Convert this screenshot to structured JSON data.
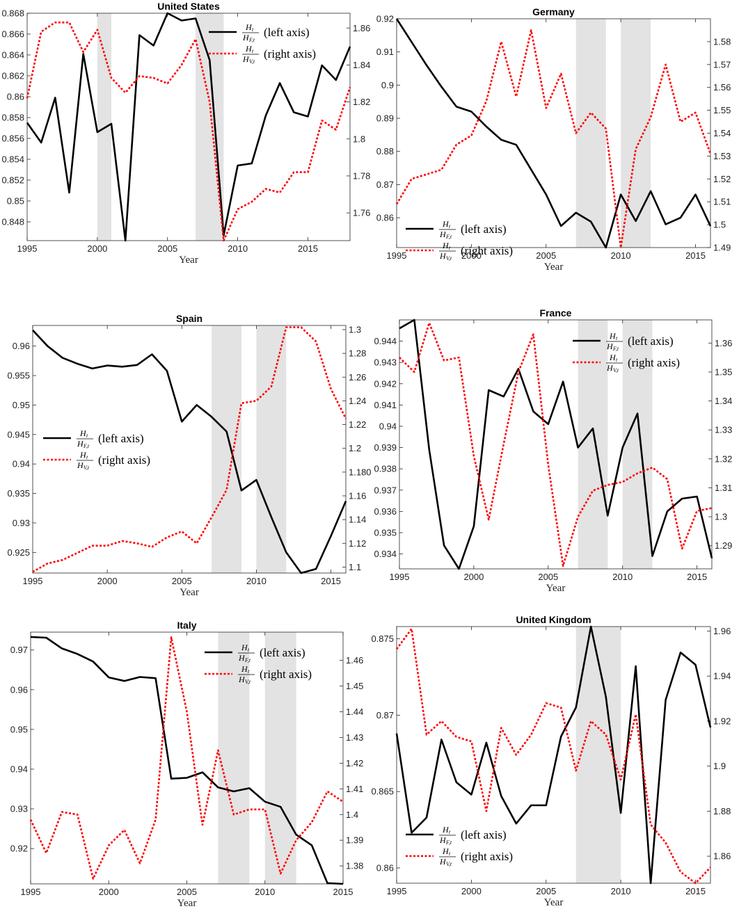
{
  "chart_data": [
    {
      "type": "line",
      "title": "United States",
      "xlabel": "Year",
      "xlim": [
        1995,
        2018
      ],
      "xticks": [
        1995,
        2000,
        2005,
        2010,
        2015
      ],
      "ylim_left": [
        0.8462,
        0.868
      ],
      "yticks_left": [
        0.848,
        0.85,
        0.852,
        0.854,
        0.856,
        0.858,
        0.86,
        0.862,
        0.864,
        0.866,
        0.868
      ],
      "ylim_right": [
        1.745,
        1.868
      ],
      "yticks_right": [
        1.76,
        1.78,
        1.8,
        1.82,
        1.84,
        1.86
      ],
      "shaded": [
        [
          2000,
          2001
        ],
        [
          2007,
          2009
        ]
      ],
      "legend_position": "top-right",
      "x": [
        1995,
        1996,
        1997,
        1998,
        1999,
        2000,
        2001,
        2002,
        2003,
        2004,
        2005,
        2006,
        2007,
        2008,
        2009,
        2010,
        2011,
        2012,
        2013,
        2014,
        2015,
        2016,
        2017,
        2018
      ],
      "series": [
        {
          "name": "left axis",
          "axis": "left",
          "color": "#000000",
          "dash": "solid",
          "values": [
            0.8575,
            0.8556,
            0.8599,
            0.8508,
            0.8641,
            0.8566,
            0.8574,
            0.8462,
            0.8659,
            0.8649,
            0.868,
            0.8673,
            0.8675,
            0.8635,
            0.8467,
            0.8534,
            0.8536,
            0.8582,
            0.8613,
            0.8585,
            0.8581,
            0.863,
            0.8616,
            0.8648
          ]
        },
        {
          "name": "right axis",
          "axis": "right",
          "color": "#ff0000",
          "dash": "dotted",
          "values": [
            1.822,
            1.858,
            1.863,
            1.863,
            1.847,
            1.859,
            1.833,
            1.825,
            1.834,
            1.833,
            1.83,
            1.84,
            1.854,
            1.82,
            1.745,
            1.762,
            1.766,
            1.773,
            1.771,
            1.782,
            1.782,
            1.81,
            1.805,
            1.828
          ]
        }
      ]
    },
    {
      "type": "line",
      "title": "Germany",
      "xlabel": "Year",
      "xlim": [
        1995,
        2016
      ],
      "xticks": [
        1995,
        2000,
        2005,
        2010,
        2015
      ],
      "ylim_left": [
        0.851,
        0.92
      ],
      "yticks_left": [
        0.86,
        0.87,
        0.88,
        0.89,
        0.9,
        0.91,
        0.92
      ],
      "ylim_right": [
        1.49,
        1.59
      ],
      "yticks_right": [
        1.49,
        1.5,
        1.51,
        1.52,
        1.53,
        1.54,
        1.55,
        1.56,
        1.57,
        1.58
      ],
      "shaded": [
        [
          2007,
          2009
        ],
        [
          2010,
          2012
        ]
      ],
      "legend_position": "bottom-left",
      "x": [
        1995,
        1996,
        1997,
        1998,
        1999,
        2000,
        2001,
        2002,
        2003,
        2004,
        2005,
        2006,
        2007,
        2008,
        2009,
        2010,
        2011,
        2012,
        2013,
        2014,
        2015,
        2016
      ],
      "series": [
        {
          "name": "left axis",
          "axis": "left",
          "color": "#000000",
          "dash": "solid",
          "values": [
            0.92,
            0.913,
            0.906,
            0.8995,
            0.8935,
            0.892,
            0.8875,
            0.8835,
            0.882,
            0.8745,
            0.867,
            0.8575,
            0.8615,
            0.8588,
            0.851,
            0.867,
            0.859,
            0.868,
            0.858,
            0.86,
            0.867,
            0.8575
          ]
        },
        {
          "name": "right axis",
          "axis": "right",
          "color": "#ff0000",
          "dash": "dotted",
          "values": [
            1.509,
            1.52,
            1.522,
            1.524,
            1.535,
            1.539,
            1.554,
            1.58,
            1.556,
            1.585,
            1.551,
            1.566,
            1.54,
            1.549,
            1.542,
            1.49,
            1.533,
            1.547,
            1.57,
            1.545,
            1.549,
            1.531
          ]
        }
      ]
    },
    {
      "type": "line",
      "title": "Spain",
      "xlabel": "Year",
      "xlim": [
        1995,
        2016
      ],
      "xticks": [
        1995,
        2000,
        2005,
        2010,
        2015
      ],
      "ylim_left": [
        0.9215,
        0.9635
      ],
      "yticks_left": [
        0.925,
        0.93,
        0.935,
        0.94,
        0.945,
        0.95,
        0.955,
        0.96
      ],
      "ylim_right": [
        1.095,
        1.3035
      ],
      "yticks_right": [
        1.1,
        1.12,
        1.14,
        1.16,
        1.18,
        1.2,
        1.22,
        1.24,
        1.26,
        1.28,
        1.3
      ],
      "yticklabels_right": [
        "1.1",
        "1.12",
        "1.14",
        "1.16",
        "1.180",
        "1.2",
        "1.22",
        "1.24",
        "1.26",
        "1.28",
        "1.3"
      ],
      "shaded": [
        [
          2007,
          2009
        ],
        [
          2010,
          2012
        ]
      ],
      "legend_position": "left",
      "x": [
        1995,
        1996,
        1997,
        1998,
        1999,
        2000,
        2001,
        2002,
        2003,
        2004,
        2005,
        2006,
        2007,
        2008,
        2009,
        2010,
        2011,
        2012,
        2013,
        2014,
        2015,
        2016
      ],
      "series": [
        {
          "name": "left axis",
          "axis": "left",
          "color": "#000000",
          "dash": "solid",
          "values": [
            0.9627,
            0.96,
            0.958,
            0.957,
            0.9562,
            0.9567,
            0.9565,
            0.9568,
            0.9586,
            0.9558,
            0.9472,
            0.95,
            0.948,
            0.9455,
            0.9355,
            0.9373,
            0.931,
            0.925,
            0.9215,
            0.9222,
            0.9278,
            0.9337
          ]
        },
        {
          "name": "right axis",
          "axis": "right",
          "color": "#ff0000",
          "dash": "dotted",
          "values": [
            1.096,
            1.103,
            1.106,
            1.112,
            1.118,
            1.118,
            1.122,
            1.12,
            1.117,
            1.125,
            1.13,
            1.12,
            1.142,
            1.165,
            1.238,
            1.24,
            1.252,
            1.302,
            1.302,
            1.29,
            1.25,
            1.225
          ]
        }
      ]
    },
    {
      "type": "line",
      "title": "France",
      "xlabel": "Year",
      "xlim": [
        1995,
        2016
      ],
      "xticks": [
        1995,
        2000,
        2005,
        2010,
        2015
      ],
      "ylim_left": [
        0.9333,
        0.945
      ],
      "yticks_left": [
        0.934,
        0.935,
        0.936,
        0.937,
        0.938,
        0.939,
        0.94,
        0.941,
        0.942,
        0.943,
        0.944
      ],
      "ylim_right": [
        1.282,
        1.368
      ],
      "yticks_right": [
        1.29,
        1.3,
        1.31,
        1.32,
        1.33,
        1.34,
        1.35,
        1.36
      ],
      "shaded": [
        [
          2007,
          2009
        ],
        [
          2010,
          2012
        ]
      ],
      "legend_position": "top-right",
      "x": [
        1995,
        1996,
        1997,
        1998,
        1999,
        2000,
        2001,
        2002,
        2003,
        2004,
        2005,
        2006,
        2007,
        2008,
        2009,
        2010,
        2011,
        2012,
        2013,
        2014,
        2015,
        2016
      ],
      "series": [
        {
          "name": "left axis",
          "axis": "left",
          "color": "#000000",
          "dash": "solid",
          "values": [
            0.9446,
            0.945,
            0.9389,
            0.9344,
            0.9333,
            0.9353,
            0.9417,
            0.9414,
            0.9427,
            0.9407,
            0.9401,
            0.9421,
            0.939,
            0.9399,
            0.9358,
            0.939,
            0.9406,
            0.9339,
            0.936,
            0.9366,
            0.9367,
            0.9338
          ]
        },
        {
          "name": "right axis",
          "axis": "right",
          "color": "#ff0000",
          "dash": "dotted",
          "values": [
            1.355,
            1.35,
            1.367,
            1.354,
            1.355,
            1.321,
            1.299,
            1.325,
            1.35,
            1.363,
            1.318,
            1.283,
            1.3,
            1.309,
            1.311,
            1.312,
            1.315,
            1.317,
            1.313,
            1.289,
            1.302,
            1.303
          ]
        }
      ]
    },
    {
      "type": "line",
      "title": "Italy",
      "xlabel": "Year",
      "xlim": [
        1995,
        2015
      ],
      "xticks": [
        1995,
        2000,
        2005,
        2010,
        2015
      ],
      "ylim_left": [
        0.9111,
        0.9745
      ],
      "yticks_left": [
        0.92,
        0.93,
        0.94,
        0.95,
        0.96,
        0.97
      ],
      "ylim_right": [
        1.373,
        1.471
      ],
      "yticks_right": [
        1.38,
        1.39,
        1.4,
        1.41,
        1.42,
        1.43,
        1.44,
        1.45,
        1.46
      ],
      "yticklabels_right": [
        "1.38",
        "1.39",
        "1.4",
        "1.41",
        "1.42",
        "1.43",
        "1.44",
        "1.45",
        "1.46"
      ],
      "shaded": [
        [
          2007,
          2009
        ],
        [
          2010,
          2012
        ]
      ],
      "legend_position": "top-right",
      "x": [
        1995,
        1996,
        1997,
        1998,
        1999,
        2000,
        2001,
        2002,
        2003,
        2004,
        2005,
        2006,
        2007,
        2008,
        2009,
        2010,
        2011,
        2012,
        2013,
        2014,
        2015
      ],
      "series": [
        {
          "name": "left axis",
          "axis": "left",
          "color": "#000000",
          "dash": "solid",
          "values": [
            0.9733,
            0.9731,
            0.9704,
            0.969,
            0.9671,
            0.9631,
            0.9622,
            0.9632,
            0.9629,
            0.9376,
            0.9378,
            0.9392,
            0.9354,
            0.9344,
            0.9352,
            0.9318,
            0.9305,
            0.9235,
            0.9208,
            0.9113,
            0.9111
          ]
        },
        {
          "name": "right axis",
          "axis": "right",
          "color": "#ff0000",
          "dash": "dotted",
          "values": [
            1.398,
            1.385,
            1.401,
            1.4,
            1.375,
            1.388,
            1.394,
            1.381,
            1.398,
            1.469,
            1.44,
            1.396,
            1.425,
            1.4,
            1.402,
            1.402,
            1.377,
            1.39,
            1.397,
            1.409,
            1.405
          ]
        }
      ]
    },
    {
      "type": "line",
      "title": "United Kingdom",
      "xlabel": "Year",
      "xlim": [
        1995,
        2016
      ],
      "xticks": [
        1995,
        2000,
        2005,
        2010,
        2015
      ],
      "ylim_left": [
        0.859,
        0.8758
      ],
      "yticks_left": [
        0.86,
        0.865,
        0.87,
        0.875
      ],
      "yticklabels_left": [
        "0.86",
        "0.865",
        "0.87",
        "0.875"
      ],
      "ylim_right": [
        1.848,
        1.962
      ],
      "yticks_right": [
        1.86,
        1.88,
        1.9,
        1.92,
        1.94,
        1.96
      ],
      "shaded": [
        [
          2007,
          2010
        ]
      ],
      "legend_position": "bottom-left",
      "x": [
        1995,
        1996,
        1997,
        1998,
        1999,
        2000,
        2001,
        2002,
        2003,
        2004,
        2005,
        2006,
        2007,
        2008,
        2009,
        2010,
        2011,
        2012,
        2013,
        2014,
        2015,
        2016
      ],
      "series": [
        {
          "name": "left axis",
          "axis": "left",
          "color": "#000000",
          "dash": "solid",
          "values": [
            0.8688,
            0.8623,
            0.8633,
            0.8684,
            0.8656,
            0.8648,
            0.8682,
            0.8647,
            0.8629,
            0.8641,
            0.8641,
            0.8686,
            0.8705,
            0.8758,
            0.8712,
            0.8636,
            0.8732,
            0.859,
            0.871,
            0.8741,
            0.8733,
            0.8692
          ]
        },
        {
          "name": "right axis",
          "axis": "right",
          "color": "#ff0000",
          "dash": "dotted",
          "values": [
            1.952,
            1.961,
            1.914,
            1.92,
            1.913,
            1.911,
            1.88,
            1.917,
            1.905,
            1.914,
            1.928,
            1.926,
            1.898,
            1.92,
            1.914,
            1.894,
            1.923,
            1.874,
            1.866,
            1.853,
            1.848,
            1.855
          ]
        }
      ]
    }
  ]
}
